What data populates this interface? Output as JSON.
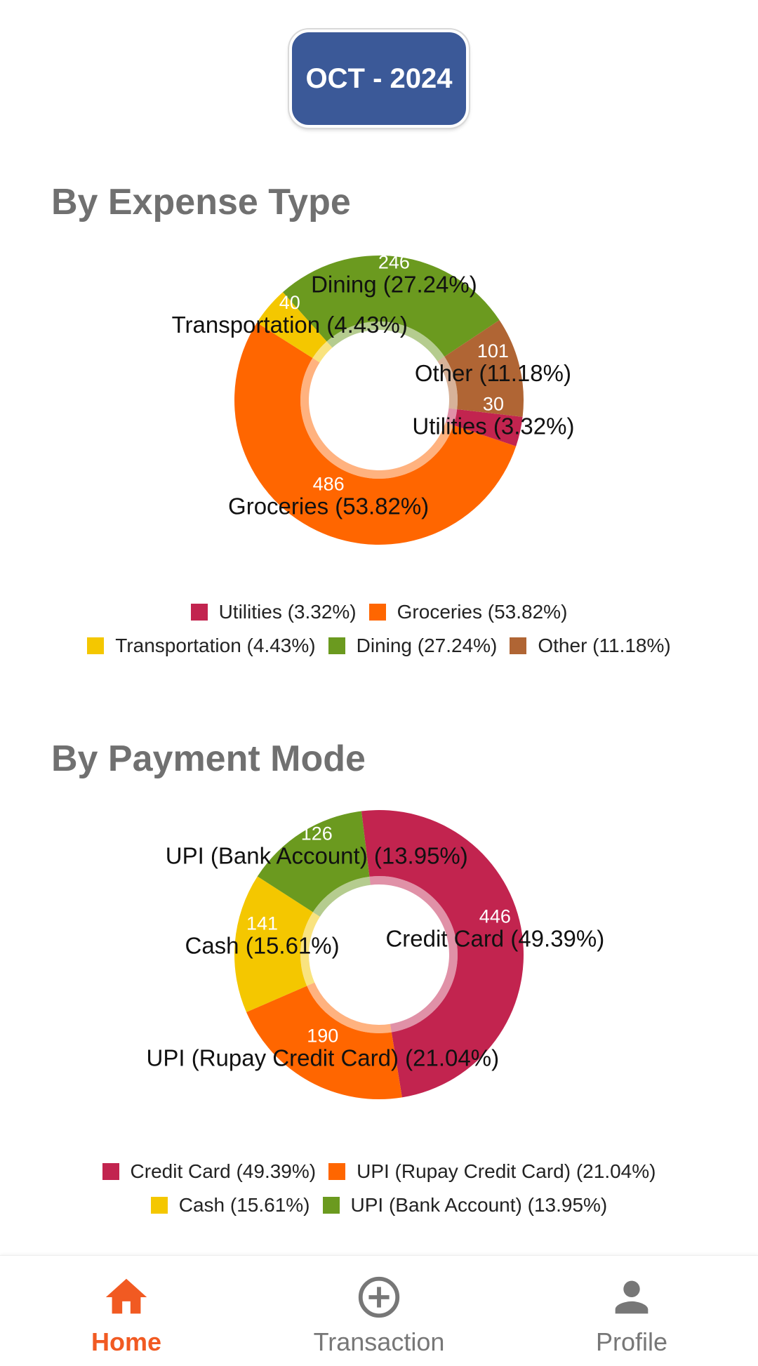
{
  "header": {
    "month_label": "OCT - 2024",
    "button_color": "#3B5998"
  },
  "sections": {
    "expense_title": "By Expense Type",
    "payment_title": "By Payment Mode"
  },
  "chart_data": [
    {
      "type": "pie",
      "style": "donut",
      "title": "By Expense Type",
      "slices": [
        {
          "name": "Utilities",
          "value": 30,
          "percent": "3.32%",
          "color": "#C2244F",
          "label": "Utilities (3.32%)"
        },
        {
          "name": "Groceries",
          "value": 486,
          "percent": "53.82%",
          "color": "#FF6600",
          "label": "Groceries (53.82%)"
        },
        {
          "name": "Transportation",
          "value": 40,
          "percent": "4.43%",
          "color": "#F4C700",
          "label": "Transportation (4.43%)"
        },
        {
          "name": "Dining",
          "value": 246,
          "percent": "27.24%",
          "color": "#6B9A1F",
          "label": "Dining (27.24%)"
        },
        {
          "name": "Other",
          "value": 101,
          "percent": "11.18%",
          "color": "#B06534",
          "label": "Other (11.18%)"
        }
      ],
      "legend": {
        "placement": "bottom",
        "rows": [
          [
            "Utilities (3.32%)",
            "Groceries (53.82%)"
          ],
          [
            "Transportation (4.43%)",
            "Dining (27.24%)",
            "Other (11.18%)"
          ]
        ]
      }
    },
    {
      "type": "pie",
      "style": "donut",
      "title": "By Payment Mode",
      "slices": [
        {
          "name": "Credit Card",
          "value": 446,
          "percent": "49.39%",
          "color": "#C2244F",
          "label": "Credit Card (49.39%)"
        },
        {
          "name": "UPI (Rupay Credit Card)",
          "value": 190,
          "percent": "21.04%",
          "color": "#FF6600",
          "label": "UPI (Rupay Credit Card) (21.04%)"
        },
        {
          "name": "Cash",
          "value": 141,
          "percent": "15.61%",
          "color": "#F4C700",
          "label": "Cash (15.61%)"
        },
        {
          "name": "UPI (Bank Account)",
          "value": 126,
          "percent": "13.95%",
          "color": "#6B9A1F",
          "label": "UPI (Bank Account) (13.95%)"
        }
      ],
      "legend": {
        "placement": "bottom",
        "rows": [
          [
            "Credit Card (49.39%)",
            "UPI (Rupay Credit Card) (21.04%)"
          ],
          [
            "Cash (15.61%)",
            "UPI (Bank Account) (13.95%)"
          ]
        ]
      }
    }
  ],
  "nav": {
    "active": "home",
    "active_color": "#F15A22",
    "items": [
      {
        "id": "home",
        "label": "Home",
        "icon": "home-icon"
      },
      {
        "id": "transaction",
        "label": "Transaction",
        "icon": "add-circle-icon"
      },
      {
        "id": "profile",
        "label": "Profile",
        "icon": "person-icon"
      }
    ]
  }
}
